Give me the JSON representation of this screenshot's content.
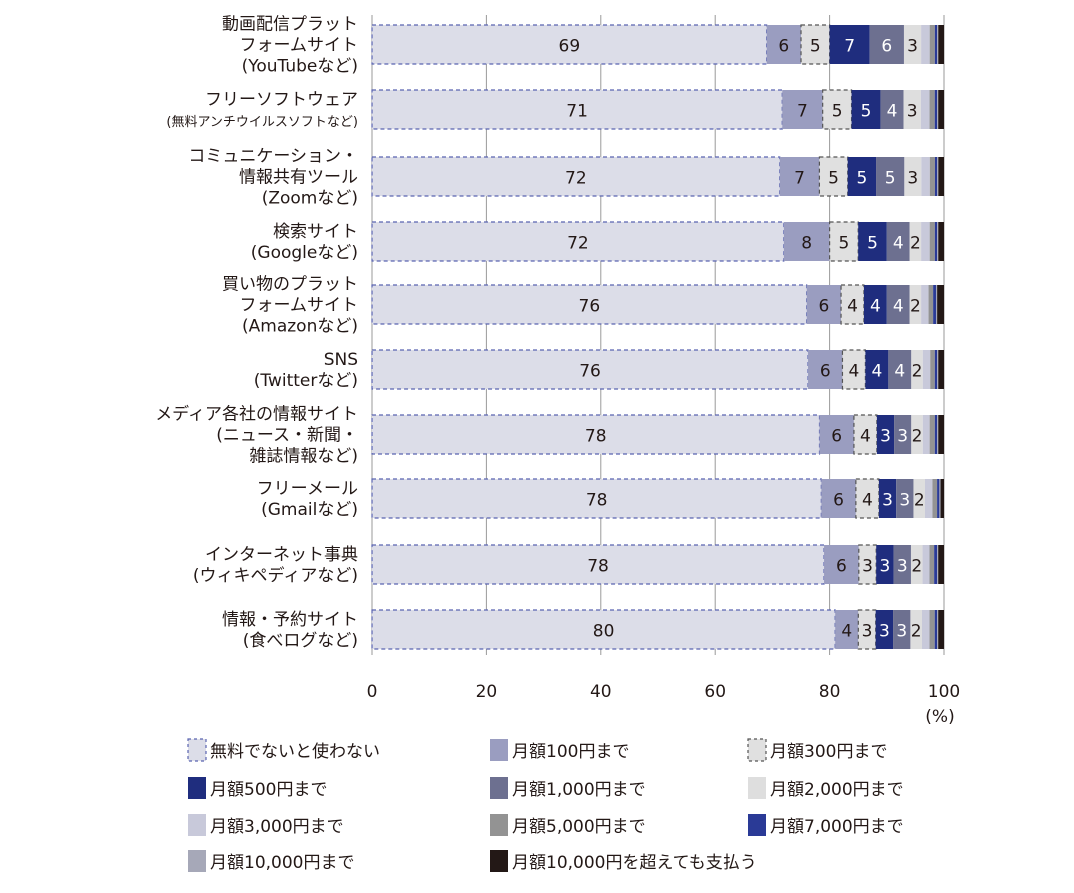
{
  "chart_data": {
    "type": "bar",
    "orientation": "horizontal",
    "stacked": true,
    "xlabel": "(%)",
    "xlim": [
      0,
      100
    ],
    "xticks": [
      "0",
      "20",
      "40",
      "60",
      "80",
      "100"
    ],
    "grid": true,
    "legend_position": "bottom",
    "categories": [
      [
        "動画配信プラット",
        "フォームサイト",
        "(YouTubeなど)"
      ],
      [
        "フリーソフトウェア",
        "(無料アンチウイルスソフトなど)"
      ],
      [
        "コミュニケーション・",
        "情報共有ツール",
        "(Zoomなど)"
      ],
      [
        "検索サイト",
        "(Googleなど)"
      ],
      [
        "買い物のプラット",
        "フォームサイト",
        "(Amazonなど)"
      ],
      [
        "SNS",
        "(Twitterなど)"
      ],
      [
        "メディア各社の情報サイト",
        "(ニュース・新聞・",
        "雑誌情報など)"
      ],
      [
        "フリーメール",
        "(Gmailなど)"
      ],
      [
        "インターネット事典",
        "(ウィキペディアなど)"
      ],
      [
        "情報・予約サイト",
        "(食べログなど)"
      ]
    ],
    "series": [
      {
        "name": "無料でないと使わない",
        "color": "#dcdde8",
        "border": "#5a64b0",
        "dashed": true,
        "label_color": "#231816",
        "values": [
          69,
          71,
          72,
          72,
          76,
          76,
          78,
          78,
          78,
          80
        ]
      },
      {
        "name": "月額100円まで",
        "color": "#9a9dc0",
        "label_color": "#231816",
        "values": [
          6,
          7,
          7,
          8,
          6,
          6,
          6,
          6,
          6,
          4
        ]
      },
      {
        "name": "月額300円まで",
        "color": "#e0e0e0",
        "border": "#555555",
        "dashed": true,
        "label_color": "#231816",
        "values": [
          5,
          5,
          5,
          5,
          4,
          4,
          4,
          4,
          3,
          3
        ]
      },
      {
        "name": "月額500円まで",
        "color": "#1f2d7e",
        "label_color": "#ffffff",
        "values": [
          7,
          5,
          5,
          5,
          4,
          4,
          3,
          3,
          3,
          3
        ]
      },
      {
        "name": "月額1,000円まで",
        "color": "#6d7090",
        "label_color": "#ffffff",
        "values": [
          6,
          4,
          5,
          4,
          4,
          4,
          3,
          3,
          3,
          3
        ]
      },
      {
        "name": "月額2,000円まで",
        "color": "#dedede",
        "label_color": "#231816",
        "values": [
          3,
          3,
          3,
          2,
          2,
          2,
          2,
          2,
          2,
          2
        ]
      },
      {
        "name": "月額3,000円まで",
        "color": "#c8c9da",
        "values": [
          1.5,
          1.5,
          1.5,
          1.5,
          1.3,
          1.3,
          1.2,
          1.3,
          1.2,
          1.3
        ]
      },
      {
        "name": "月額5,000円まで",
        "color": "#939393",
        "values": [
          0.9,
          0.9,
          0.9,
          0.9,
          0.8,
          0.8,
          0.9,
          0.8,
          0.8,
          0.9
        ]
      },
      {
        "name": "月額7,000円まで",
        "color": "#2a3a96",
        "values": [
          0.4,
          0.4,
          0.4,
          0.4,
          0.5,
          0.4,
          0.4,
          0.4,
          0.5,
          0.4
        ]
      },
      {
        "name": "月額10,000円まで",
        "color": "#a6a8b8",
        "values": [
          0.2,
          0.2,
          0.2,
          0.2,
          0.2,
          0.2,
          0.2,
          0.2,
          0.2,
          0.2
        ]
      },
      {
        "name": "月額10,000円を超えても支払う",
        "color": "#231816",
        "values": [
          1.0,
          1.0,
          1.0,
          1.0,
          1.2,
          1.0,
          1.0,
          0.6,
          1.0,
          1.0
        ]
      }
    ],
    "labeled_series_count": 6
  }
}
